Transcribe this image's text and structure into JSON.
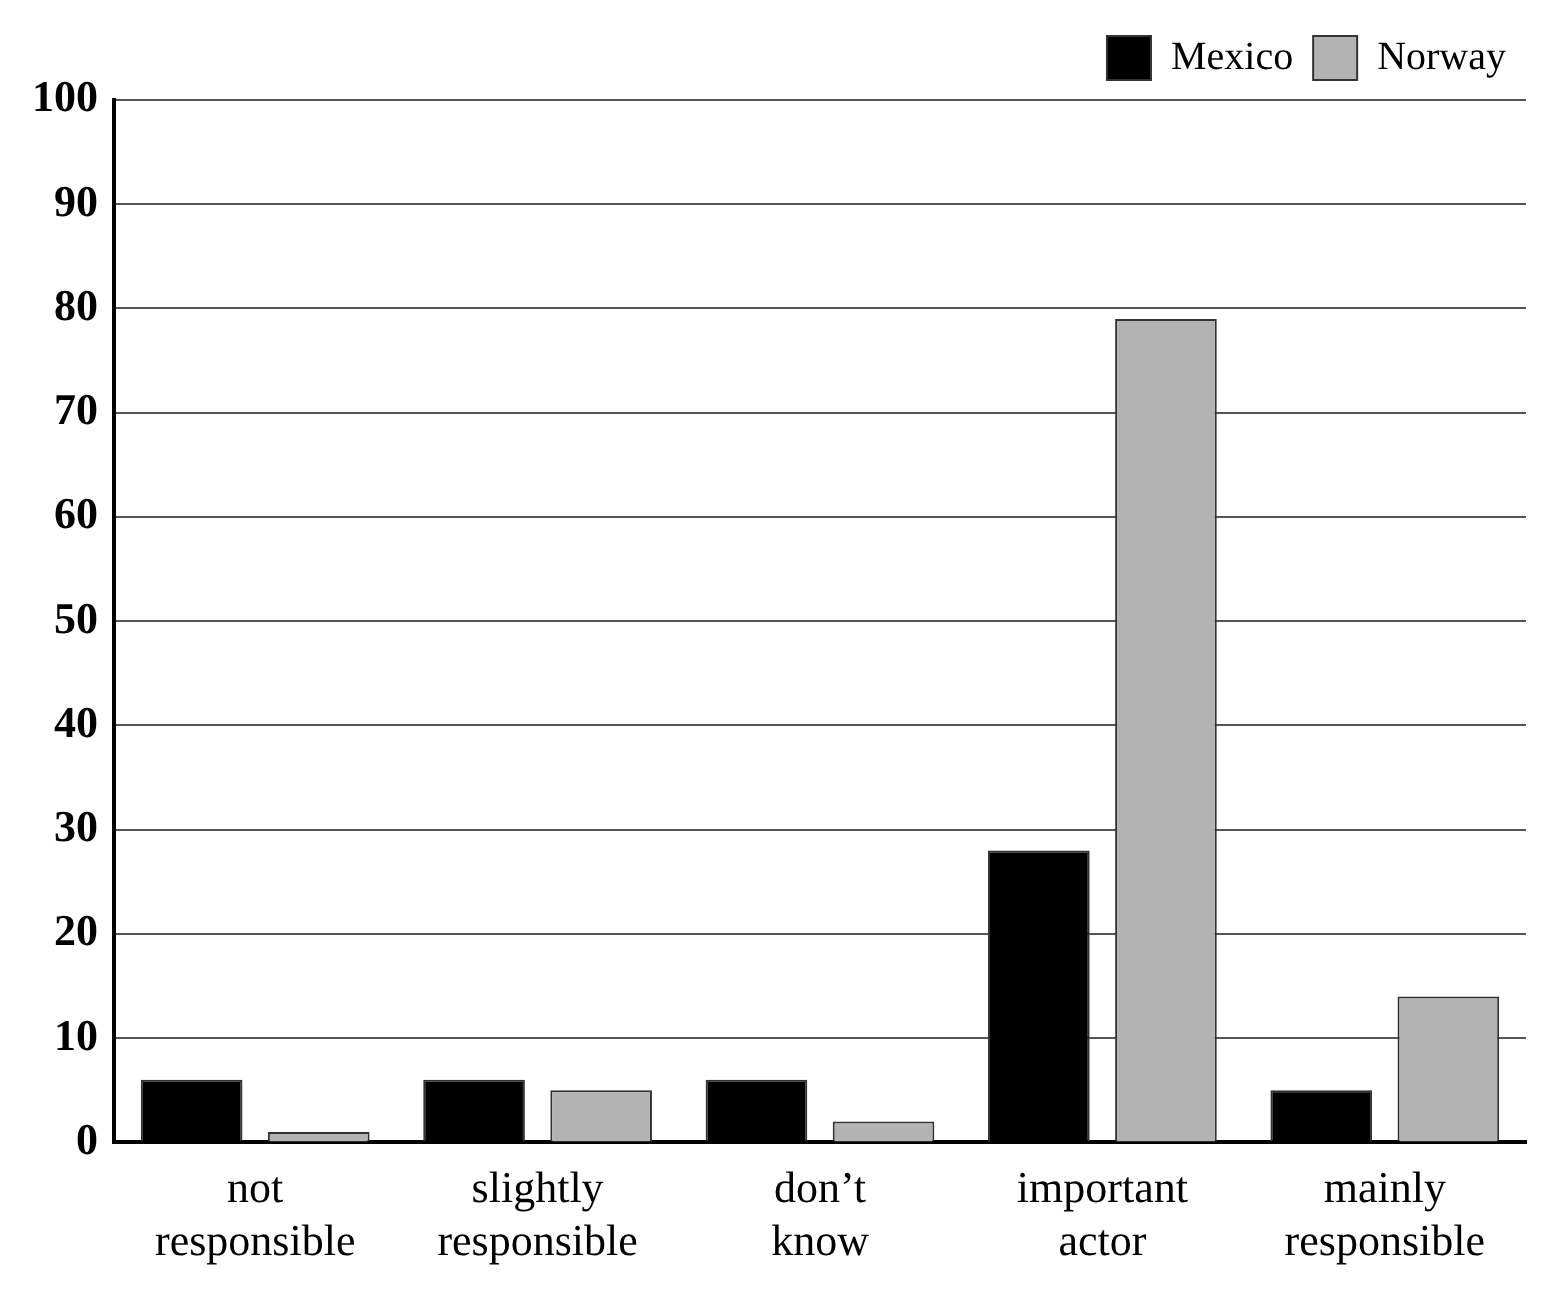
{
  "chart_data": {
    "type": "bar",
    "categories": [
      "not responsible",
      "slightly responsible",
      "don’t know",
      "important actor",
      "mainly responsible"
    ],
    "series": [
      {
        "name": "Mexico",
        "color": "#000000",
        "values": [
          6,
          6,
          6,
          28,
          5
        ]
      },
      {
        "name": "Norway",
        "color": "#b3b3b3",
        "values": [
          1,
          5,
          2,
          79,
          14
        ]
      }
    ],
    "ylim": [
      0,
      100
    ],
    "yticks": [
      0,
      10,
      20,
      30,
      40,
      50,
      60,
      70,
      80,
      90,
      100
    ],
    "grid": "y",
    "legend": "top right"
  }
}
